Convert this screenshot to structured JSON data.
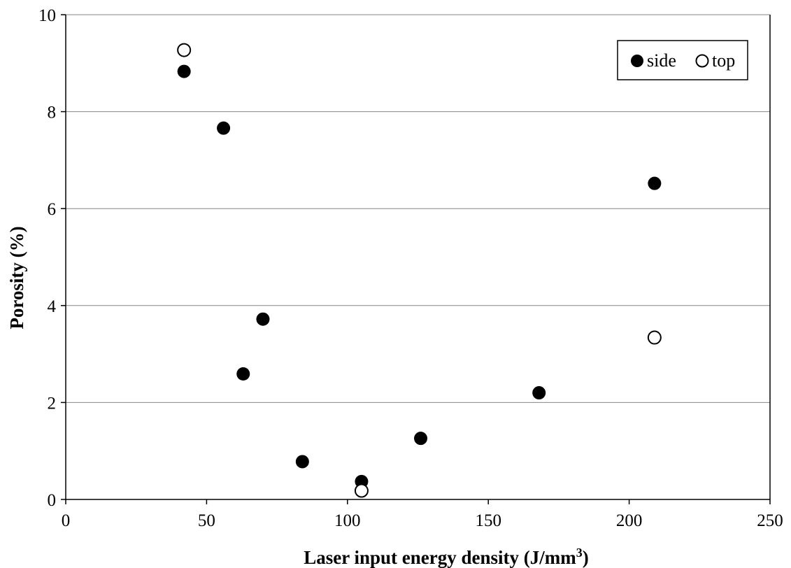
{
  "chart_data": {
    "type": "scatter",
    "xlabel": "Laser input energy density (J/mm",
    "xlabel_sup": "3",
    "xlabel_end": ")",
    "ylabel": "Porosity (%)",
    "xlim": [
      0,
      250
    ],
    "ylim": [
      0,
      10
    ],
    "xticks": [
      0,
      50,
      100,
      150,
      200,
      250
    ],
    "yticks": [
      0,
      2,
      4,
      6,
      8,
      10
    ],
    "grid": "horizontal",
    "legend_position": "top-right",
    "series": [
      {
        "name": "side",
        "marker": "filled-circle",
        "color": "#000000",
        "points": [
          {
            "x": 42,
            "y": 8.83
          },
          {
            "x": 56,
            "y": 7.66
          },
          {
            "x": 63,
            "y": 2.59
          },
          {
            "x": 70,
            "y": 3.72
          },
          {
            "x": 84,
            "y": 0.78
          },
          {
            "x": 105,
            "y": 0.37
          },
          {
            "x": 126,
            "y": 1.26
          },
          {
            "x": 168,
            "y": 2.2
          },
          {
            "x": 209,
            "y": 6.52
          }
        ]
      },
      {
        "name": "top",
        "marker": "open-circle",
        "color": "#000000",
        "points": [
          {
            "x": 42,
            "y": 9.27
          },
          {
            "x": 105,
            "y": 0.18
          },
          {
            "x": 209,
            "y": 3.34
          }
        ]
      }
    ]
  }
}
